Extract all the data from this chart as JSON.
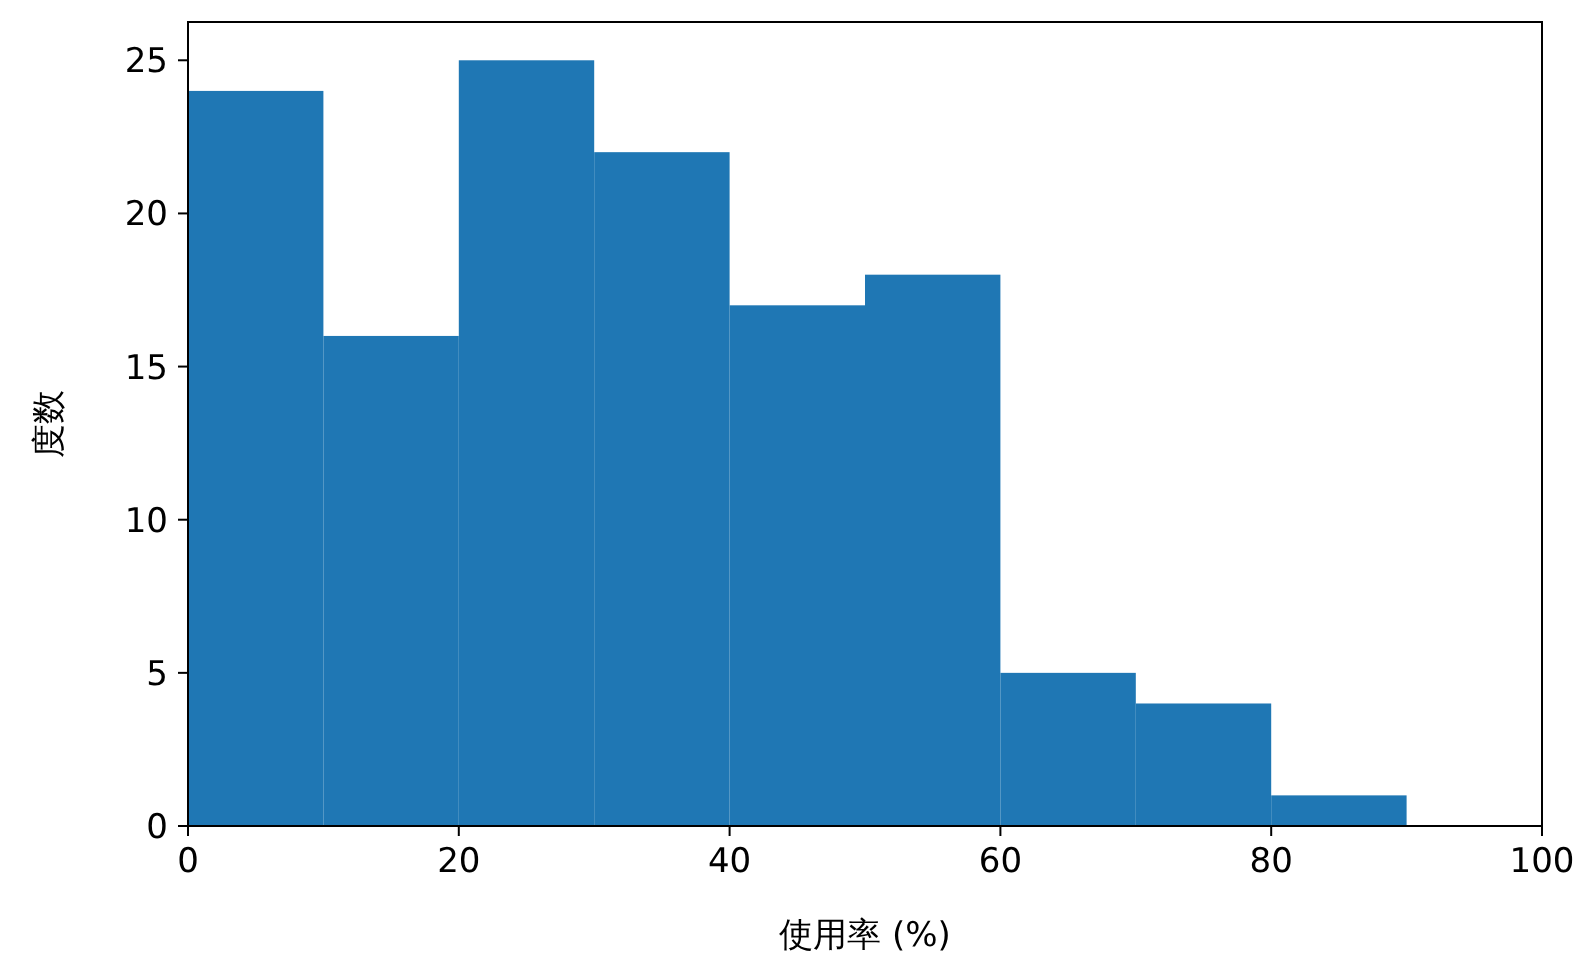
{
  "chart_data": {
    "type": "histogram",
    "xlabel": "使用率 (%)",
    "ylabel": "度数",
    "bins": [
      0,
      10,
      20,
      30,
      40,
      50,
      60,
      70,
      80,
      90
    ],
    "values": [
      24,
      16,
      25,
      22,
      17,
      18,
      5,
      4,
      1
    ],
    "color": "#1f77b4",
    "xlim": [
      0,
      100
    ],
    "ylim": [
      0,
      26.25
    ],
    "xticks": [
      0,
      20,
      40,
      60,
      80,
      100
    ],
    "yticks": [
      0,
      5,
      10,
      15,
      20,
      25
    ]
  }
}
